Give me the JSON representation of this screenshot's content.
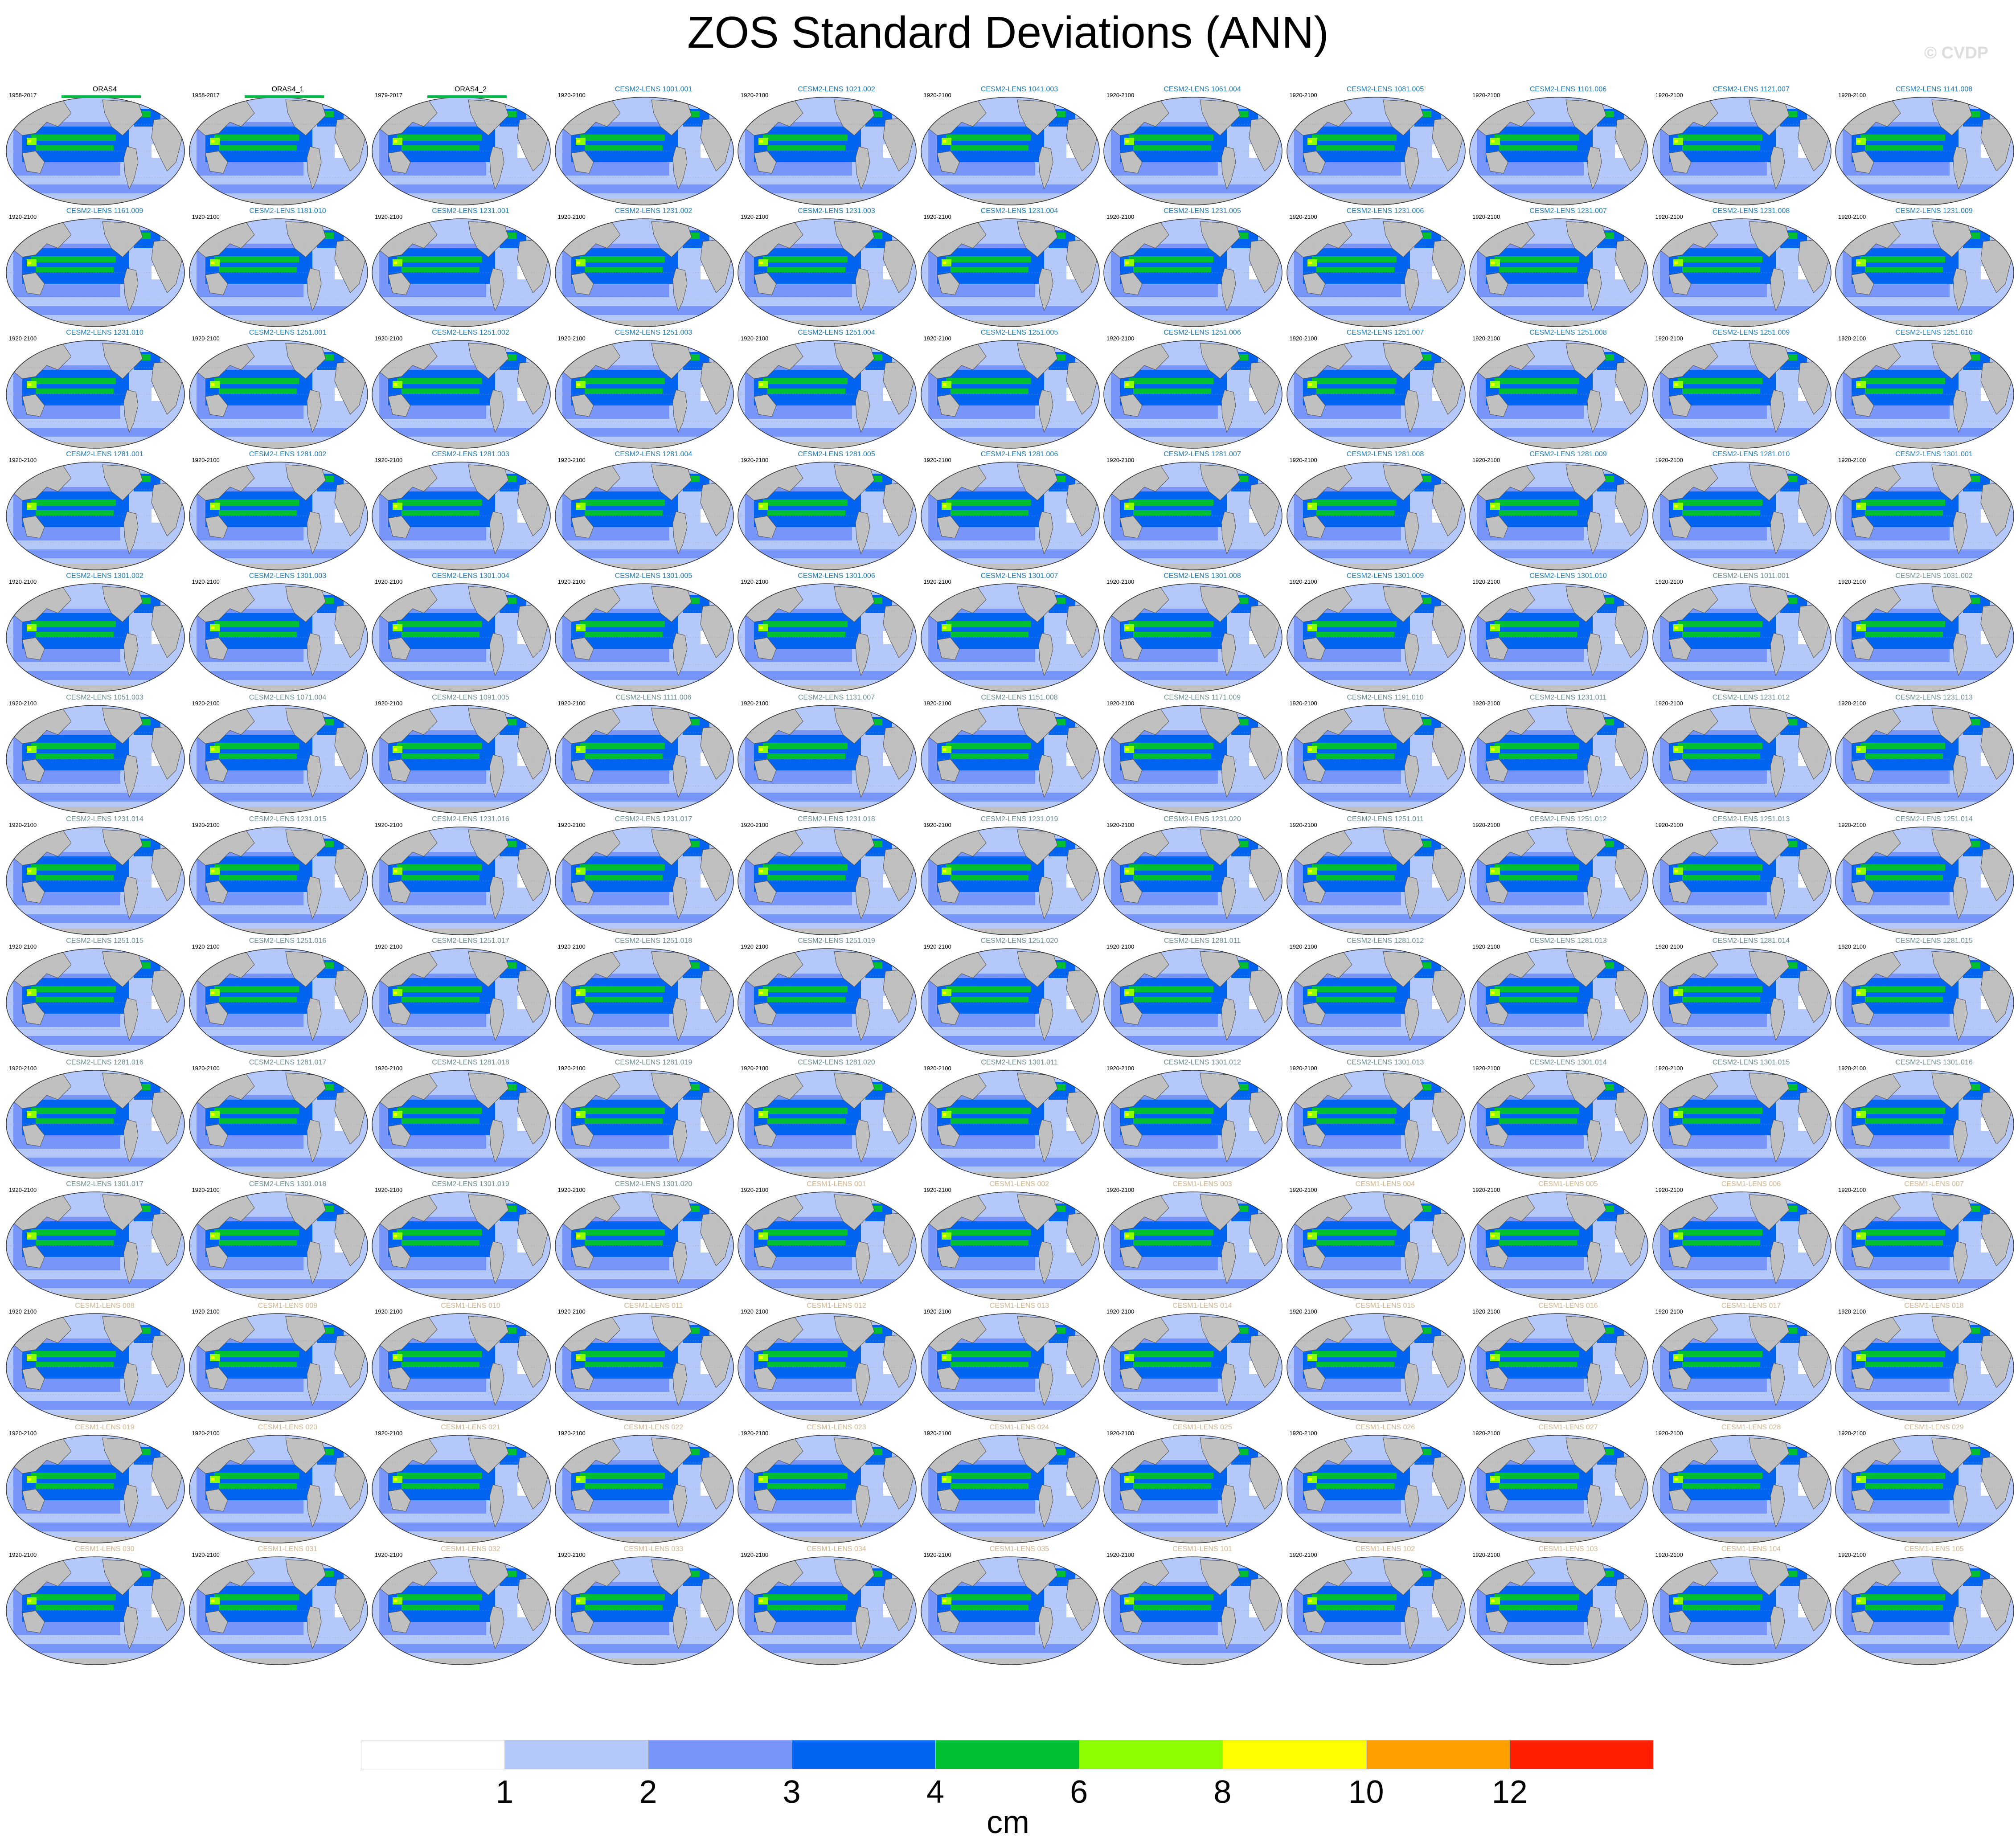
{
  "title": "ZOS Standard Deviations (ANN)",
  "credit": "© CVDP",
  "panels": [
    {
      "name": "ORAS4",
      "period": "1958-2017",
      "group": "obs"
    },
    {
      "name": "ORAS4_1",
      "period": "1958-2017",
      "group": "obs"
    },
    {
      "name": "ORAS4_2",
      "period": "1979-2017",
      "group": "obs"
    },
    {
      "name": "CESM2-LENS 1001.001",
      "period": "1920-2100",
      "group": "lens2a"
    },
    {
      "name": "CESM2-LENS 1021.002",
      "period": "1920-2100",
      "group": "lens2a"
    },
    {
      "name": "CESM2-LENS 1041.003",
      "period": "1920-2100",
      "group": "lens2a"
    },
    {
      "name": "CESM2-LENS 1061.004",
      "period": "1920-2100",
      "group": "lens2a"
    },
    {
      "name": "CESM2-LENS 1081.005",
      "period": "1920-2100",
      "group": "lens2a"
    },
    {
      "name": "CESM2-LENS 1101.006",
      "period": "1920-2100",
      "group": "lens2a"
    },
    {
      "name": "CESM2-LENS 1121.007",
      "period": "1920-2100",
      "group": "lens2a"
    },
    {
      "name": "CESM2-LENS 1141.008",
      "period": "1920-2100",
      "group": "lens2a"
    },
    {
      "name": "CESM2-LENS 1161.009",
      "period": "1920-2100",
      "group": "lens2a"
    },
    {
      "name": "CESM2-LENS 1181.010",
      "period": "1920-2100",
      "group": "lens2a"
    },
    {
      "name": "CESM2-LENS 1231.001",
      "period": "1920-2100",
      "group": "lens2a"
    },
    {
      "name": "CESM2-LENS 1231.002",
      "period": "1920-2100",
      "group": "lens2a"
    },
    {
      "name": "CESM2-LENS 1231.003",
      "period": "1920-2100",
      "group": "lens2a"
    },
    {
      "name": "CESM2-LENS 1231.004",
      "period": "1920-2100",
      "group": "lens2a"
    },
    {
      "name": "CESM2-LENS 1231.005",
      "period": "1920-2100",
      "group": "lens2a"
    },
    {
      "name": "CESM2-LENS 1231.006",
      "period": "1920-2100",
      "group": "lens2a"
    },
    {
      "name": "CESM2-LENS 1231.007",
      "period": "1920-2100",
      "group": "lens2a"
    },
    {
      "name": "CESM2-LENS 1231.008",
      "period": "1920-2100",
      "group": "lens2a"
    },
    {
      "name": "CESM2-LENS 1231.009",
      "period": "1920-2100",
      "group": "lens2a"
    },
    {
      "name": "CESM2-LENS 1231.010",
      "period": "1920-2100",
      "group": "lens2a"
    },
    {
      "name": "CESM2-LENS 1251.001",
      "period": "1920-2100",
      "group": "lens2a"
    },
    {
      "name": "CESM2-LENS 1251.002",
      "period": "1920-2100",
      "group": "lens2a"
    },
    {
      "name": "CESM2-LENS 1251.003",
      "period": "1920-2100",
      "group": "lens2a"
    },
    {
      "name": "CESM2-LENS 1251.004",
      "period": "1920-2100",
      "group": "lens2a"
    },
    {
      "name": "CESM2-LENS 1251.005",
      "period": "1920-2100",
      "group": "lens2a"
    },
    {
      "name": "CESM2-LENS 1251.006",
      "period": "1920-2100",
      "group": "lens2a"
    },
    {
      "name": "CESM2-LENS 1251.007",
      "period": "1920-2100",
      "group": "lens2a"
    },
    {
      "name": "CESM2-LENS 1251.008",
      "period": "1920-2100",
      "group": "lens2a"
    },
    {
      "name": "CESM2-LENS 1251.009",
      "period": "1920-2100",
      "group": "lens2a"
    },
    {
      "name": "CESM2-LENS 1251.010",
      "period": "1920-2100",
      "group": "lens2a"
    },
    {
      "name": "CESM2-LENS 1281.001",
      "period": "1920-2100",
      "group": "lens2a"
    },
    {
      "name": "CESM2-LENS 1281.002",
      "period": "1920-2100",
      "group": "lens2a"
    },
    {
      "name": "CESM2-LENS 1281.003",
      "period": "1920-2100",
      "group": "lens2a"
    },
    {
      "name": "CESM2-LENS 1281.004",
      "period": "1920-2100",
      "group": "lens2a"
    },
    {
      "name": "CESM2-LENS 1281.005",
      "period": "1920-2100",
      "group": "lens2a"
    },
    {
      "name": "CESM2-LENS 1281.006",
      "period": "1920-2100",
      "group": "lens2a"
    },
    {
      "name": "CESM2-LENS 1281.007",
      "period": "1920-2100",
      "group": "lens2a"
    },
    {
      "name": "CESM2-LENS 1281.008",
      "period": "1920-2100",
      "group": "lens2a"
    },
    {
      "name": "CESM2-LENS 1281.009",
      "period": "1920-2100",
      "group": "lens2a"
    },
    {
      "name": "CESM2-LENS 1281.010",
      "period": "1920-2100",
      "group": "lens2a"
    },
    {
      "name": "CESM2-LENS 1301.001",
      "period": "1920-2100",
      "group": "lens2a"
    },
    {
      "name": "CESM2-LENS 1301.002",
      "period": "1920-2100",
      "group": "lens2a"
    },
    {
      "name": "CESM2-LENS 1301.003",
      "period": "1920-2100",
      "group": "lens2a"
    },
    {
      "name": "CESM2-LENS 1301.004",
      "period": "1920-2100",
      "group": "lens2a"
    },
    {
      "name": "CESM2-LENS 1301.005",
      "period": "1920-2100",
      "group": "lens2a"
    },
    {
      "name": "CESM2-LENS 1301.006",
      "period": "1920-2100",
      "group": "lens2a"
    },
    {
      "name": "CESM2-LENS 1301.007",
      "period": "1920-2100",
      "group": "lens2a"
    },
    {
      "name": "CESM2-LENS 1301.008",
      "period": "1920-2100",
      "group": "lens2a"
    },
    {
      "name": "CESM2-LENS 1301.009",
      "period": "1920-2100",
      "group": "lens2a"
    },
    {
      "name": "CESM2-LENS 1301.010",
      "period": "1920-2100",
      "group": "lens2a"
    },
    {
      "name": "CESM2-LENS 1011.001",
      "period": "1920-2100",
      "group": "lens2b"
    },
    {
      "name": "CESM2-LENS 1031.002",
      "period": "1920-2100",
      "group": "lens2b"
    },
    {
      "name": "CESM2-LENS 1051.003",
      "period": "1920-2100",
      "group": "lens2b"
    },
    {
      "name": "CESM2-LENS 1071.004",
      "period": "1920-2100",
      "group": "lens2b"
    },
    {
      "name": "CESM2-LENS 1091.005",
      "period": "1920-2100",
      "group": "lens2b"
    },
    {
      "name": "CESM2-LENS 1111.006",
      "period": "1920-2100",
      "group": "lens2b"
    },
    {
      "name": "CESM2-LENS 1131.007",
      "period": "1920-2100",
      "group": "lens2b"
    },
    {
      "name": "CESM2-LENS 1151.008",
      "period": "1920-2100",
      "group": "lens2b"
    },
    {
      "name": "CESM2-LENS 1171.009",
      "period": "1920-2100",
      "group": "lens2b"
    },
    {
      "name": "CESM2-LENS 1191.010",
      "period": "1920-2100",
      "group": "lens2b"
    },
    {
      "name": "CESM2-LENS 1231.011",
      "period": "1920-2100",
      "group": "lens2b"
    },
    {
      "name": "CESM2-LENS 1231.012",
      "period": "1920-2100",
      "group": "lens2b"
    },
    {
      "name": "CESM2-LENS 1231.013",
      "period": "1920-2100",
      "group": "lens2b"
    },
    {
      "name": "CESM2-LENS 1231.014",
      "period": "1920-2100",
      "group": "lens2b"
    },
    {
      "name": "CESM2-LENS 1231.015",
      "period": "1920-2100",
      "group": "lens2b"
    },
    {
      "name": "CESM2-LENS 1231.016",
      "period": "1920-2100",
      "group": "lens2b"
    },
    {
      "name": "CESM2-LENS 1231.017",
      "period": "1920-2100",
      "group": "lens2b"
    },
    {
      "name": "CESM2-LENS 1231.018",
      "period": "1920-2100",
      "group": "lens2b"
    },
    {
      "name": "CESM2-LENS 1231.019",
      "period": "1920-2100",
      "group": "lens2b"
    },
    {
      "name": "CESM2-LENS 1231.020",
      "period": "1920-2100",
      "group": "lens2b"
    },
    {
      "name": "CESM2-LENS 1251.011",
      "period": "1920-2100",
      "group": "lens2b"
    },
    {
      "name": "CESM2-LENS 1251.012",
      "period": "1920-2100",
      "group": "lens2b"
    },
    {
      "name": "CESM2-LENS 1251.013",
      "period": "1920-2100",
      "group": "lens2b"
    },
    {
      "name": "CESM2-LENS 1251.014",
      "period": "1920-2100",
      "group": "lens2b"
    },
    {
      "name": "CESM2-LENS 1251.015",
      "period": "1920-2100",
      "group": "lens2b"
    },
    {
      "name": "CESM2-LENS 1251.016",
      "period": "1920-2100",
      "group": "lens2b"
    },
    {
      "name": "CESM2-LENS 1251.017",
      "period": "1920-2100",
      "group": "lens2b"
    },
    {
      "name": "CESM2-LENS 1251.018",
      "period": "1920-2100",
      "group": "lens2b"
    },
    {
      "name": "CESM2-LENS 1251.019",
      "period": "1920-2100",
      "group": "lens2b"
    },
    {
      "name": "CESM2-LENS 1251.020",
      "period": "1920-2100",
      "group": "lens2b"
    },
    {
      "name": "CESM2-LENS 1281.011",
      "period": "1920-2100",
      "group": "lens2b"
    },
    {
      "name": "CESM2-LENS 1281.012",
      "period": "1920-2100",
      "group": "lens2b"
    },
    {
      "name": "CESM2-LENS 1281.013",
      "period": "1920-2100",
      "group": "lens2b"
    },
    {
      "name": "CESM2-LENS 1281.014",
      "period": "1920-2100",
      "group": "lens2b"
    },
    {
      "name": "CESM2-LENS 1281.015",
      "period": "1920-2100",
      "group": "lens2b"
    },
    {
      "name": "CESM2-LENS 1281.016",
      "period": "1920-2100",
      "group": "lens2b"
    },
    {
      "name": "CESM2-LENS 1281.017",
      "period": "1920-2100",
      "group": "lens2b"
    },
    {
      "name": "CESM2-LENS 1281.018",
      "period": "1920-2100",
      "group": "lens2b"
    },
    {
      "name": "CESM2-LENS 1281.019",
      "period": "1920-2100",
      "group": "lens2b"
    },
    {
      "name": "CESM2-LENS 1281.020",
      "period": "1920-2100",
      "group": "lens2b"
    },
    {
      "name": "CESM2-LENS 1301.011",
      "period": "1920-2100",
      "group": "lens2b"
    },
    {
      "name": "CESM2-LENS 1301.012",
      "period": "1920-2100",
      "group": "lens2b"
    },
    {
      "name": "CESM2-LENS 1301.013",
      "period": "1920-2100",
      "group": "lens2b"
    },
    {
      "name": "CESM2-LENS 1301.014",
      "period": "1920-2100",
      "group": "lens2b"
    },
    {
      "name": "CESM2-LENS 1301.015",
      "period": "1920-2100",
      "group": "lens2b"
    },
    {
      "name": "CESM2-LENS 1301.016",
      "period": "1920-2100",
      "group": "lens2b"
    },
    {
      "name": "CESM2-LENS 1301.017",
      "period": "1920-2100",
      "group": "lens2b"
    },
    {
      "name": "CESM2-LENS 1301.018",
      "period": "1920-2100",
      "group": "lens2b"
    },
    {
      "name": "CESM2-LENS 1301.019",
      "period": "1920-2100",
      "group": "lens2b"
    },
    {
      "name": "CESM2-LENS 1301.020",
      "period": "1920-2100",
      "group": "lens2b"
    },
    {
      "name": "CESM1-LENS 001",
      "period": "1920-2100",
      "group": "lens1"
    },
    {
      "name": "CESM1-LENS 002",
      "period": "1920-2100",
      "group": "lens1"
    },
    {
      "name": "CESM1-LENS 003",
      "period": "1920-2100",
      "group": "lens1"
    },
    {
      "name": "CESM1-LENS 004",
      "period": "1920-2100",
      "group": "lens1"
    },
    {
      "name": "CESM1-LENS 005",
      "period": "1920-2100",
      "group": "lens1"
    },
    {
      "name": "CESM1-LENS 006",
      "period": "1920-2100",
      "group": "lens1"
    },
    {
      "name": "CESM1-LENS 007",
      "period": "1920-2100",
      "group": "lens1"
    },
    {
      "name": "CESM1-LENS 008",
      "period": "1920-2100",
      "group": "lens1"
    },
    {
      "name": "CESM1-LENS 009",
      "period": "1920-2100",
      "group": "lens1"
    },
    {
      "name": "CESM1-LENS 010",
      "period": "1920-2100",
      "group": "lens1"
    },
    {
      "name": "CESM1-LENS 011",
      "period": "1920-2100",
      "group": "lens1"
    },
    {
      "name": "CESM1-LENS 012",
      "period": "1920-2100",
      "group": "lens1"
    },
    {
      "name": "CESM1-LENS 013",
      "period": "1920-2100",
      "group": "lens1"
    },
    {
      "name": "CESM1-LENS 014",
      "period": "1920-2100",
      "group": "lens1"
    },
    {
      "name": "CESM1-LENS 015",
      "period": "1920-2100",
      "group": "lens1"
    },
    {
      "name": "CESM1-LENS 016",
      "period": "1920-2100",
      "group": "lens1"
    },
    {
      "name": "CESM1-LENS 017",
      "period": "1920-2100",
      "group": "lens1"
    },
    {
      "name": "CESM1-LENS 018",
      "period": "1920-2100",
      "group": "lens1"
    },
    {
      "name": "CESM1-LENS 019",
      "period": "1920-2100",
      "group": "lens1"
    },
    {
      "name": "CESM1-LENS 020",
      "period": "1920-2100",
      "group": "lens1"
    },
    {
      "name": "CESM1-LENS 021",
      "period": "1920-2100",
      "group": "lens1"
    },
    {
      "name": "CESM1-LENS 022",
      "period": "1920-2100",
      "group": "lens1"
    },
    {
      "name": "CESM1-LENS 023",
      "period": "1920-2100",
      "group": "lens1"
    },
    {
      "name": "CESM1-LENS 024",
      "period": "1920-2100",
      "group": "lens1"
    },
    {
      "name": "CESM1-LENS 025",
      "period": "1920-2100",
      "group": "lens1"
    },
    {
      "name": "CESM1-LENS 026",
      "period": "1920-2100",
      "group": "lens1"
    },
    {
      "name": "CESM1-LENS 027",
      "period": "1920-2100",
      "group": "lens1"
    },
    {
      "name": "CESM1-LENS 028",
      "period": "1920-2100",
      "group": "lens1"
    },
    {
      "name": "CESM1-LENS 029",
      "period": "1920-2100",
      "group": "lens1"
    },
    {
      "name": "CESM1-LENS 030",
      "period": "1920-2100",
      "group": "lens1"
    },
    {
      "name": "CESM1-LENS 031",
      "period": "1920-2100",
      "group": "lens1"
    },
    {
      "name": "CESM1-LENS 032",
      "period": "1920-2100",
      "group": "lens1"
    },
    {
      "name": "CESM1-LENS 033",
      "period": "1920-2100",
      "group": "lens1"
    },
    {
      "name": "CESM1-LENS 034",
      "period": "1920-2100",
      "group": "lens1"
    },
    {
      "name": "CESM1-LENS 035",
      "period": "1920-2100",
      "group": "lens1"
    },
    {
      "name": "CESM1-LENS 101",
      "period": "1920-2100",
      "group": "lens1"
    },
    {
      "name": "CESM1-LENS 102",
      "period": "1920-2100",
      "group": "lens1"
    },
    {
      "name": "CESM1-LENS 103",
      "period": "1920-2100",
      "group": "lens1"
    },
    {
      "name": "CESM1-LENS 104",
      "period": "1920-2100",
      "group": "lens1"
    },
    {
      "name": "CESM1-LENS 105",
      "period": "1920-2100",
      "group": "lens1"
    }
  ],
  "colorbar": {
    "units": "cm",
    "tick_labels": [
      "1",
      "2",
      "3",
      "4",
      "6",
      "8",
      "10",
      "12"
    ],
    "colors": [
      "#ffffff",
      "#b4c8fa",
      "#7896fa",
      "#0064f0",
      "#00c032",
      "#8cff00",
      "#ffff00",
      "#ffa000",
      "#ff1e00"
    ]
  },
  "palette": {
    "land": "#c0c0c0",
    "coast": "#505050"
  }
}
